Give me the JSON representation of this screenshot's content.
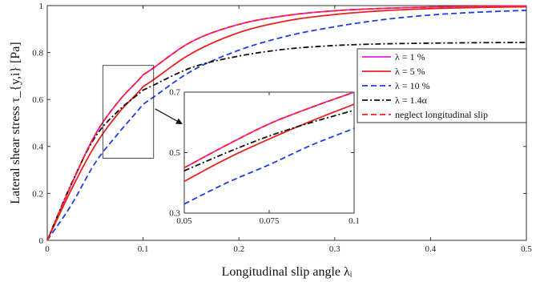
{
  "chart_data": [
    {
      "type": "line",
      "title": "",
      "xlabel": "Longitudinal slip angle λᵢ",
      "ylabel": "Lateral shear stress τ_{y,i} [Pa]",
      "xlim": [
        0,
        0.5
      ],
      "ylim": [
        0,
        1
      ],
      "xticks": [
        "0",
        "0.1",
        "0.2",
        "0.3",
        "0.4",
        "0.5"
      ],
      "yticks": [
        "0",
        "0.2",
        "0.4",
        "0.6",
        "0.8",
        "1"
      ],
      "grid": false,
      "legend_position": "right",
      "x": [
        0,
        0.025,
        0.05,
        0.075,
        0.1,
        0.15,
        0.2,
        0.25,
        0.3,
        0.35,
        0.4,
        0.45,
        0.5
      ],
      "series": [
        {
          "name": "λ = 1 %",
          "color": "#e020e0",
          "dash": "solid",
          "values": [
            0,
            0.236,
            0.45,
            0.595,
            0.705,
            0.845,
            0.92,
            0.958,
            0.978,
            0.988,
            0.994,
            0.997,
            0.998
          ]
        },
        {
          "name": "λ = 5 %",
          "color": "#e8231e",
          "dash": "solid",
          "values": [
            0,
            0.215,
            0.405,
            0.545,
            0.655,
            0.795,
            0.885,
            0.935,
            0.962,
            0.978,
            0.987,
            0.992,
            0.995
          ]
        },
        {
          "name": "λ = 10 %",
          "color": "#1f3fe0",
          "dash": "dashed",
          "values": [
            0,
            0.15,
            0.33,
            0.46,
            0.58,
            0.72,
            0.81,
            0.87,
            0.91,
            0.94,
            0.96,
            0.972,
            0.98
          ]
        },
        {
          "name": "λ = 1.4α",
          "color": "#111111",
          "dash": "dashdot",
          "values": [
            0,
            0.24,
            0.44,
            0.555,
            0.64,
            0.735,
            0.785,
            0.815,
            0.83,
            0.837,
            0.84,
            0.842,
            0.843
          ]
        },
        {
          "name": "neglect longitudinal slip",
          "color": "#ff2020",
          "dash": "dashed",
          "values": [
            0,
            0.236,
            0.45,
            0.595,
            0.705,
            0.845,
            0.92,
            0.958,
            0.978,
            0.988,
            0.994,
            0.997,
            0.998
          ]
        }
      ]
    },
    {
      "type": "line",
      "title": "",
      "xlim": [
        0.05,
        0.1
      ],
      "ylim": [
        0.3,
        0.7
      ],
      "xticks": [
        "0.05",
        "0.075",
        "0.1"
      ],
      "yticks": [
        "0.3",
        "0.5",
        "0.7"
      ],
      "x": [
        0.05,
        0.0625,
        0.075,
        0.0875,
        0.1
      ],
      "series": [
        {
          "color": "#e020e0",
          "dash": "solid",
          "values": [
            0.45,
            0.525,
            0.595,
            0.65,
            0.7
          ]
        },
        {
          "color": "#e8231e",
          "dash": "solid",
          "values": [
            0.405,
            0.48,
            0.545,
            0.605,
            0.66
          ]
        },
        {
          "color": "#1f3fe0",
          "dash": "dashed",
          "values": [
            0.33,
            0.4,
            0.46,
            0.525,
            0.58
          ]
        },
        {
          "color": "#111111",
          "dash": "dashdot",
          "values": [
            0.44,
            0.5,
            0.555,
            0.6,
            0.64
          ]
        },
        {
          "color": "#ff2020",
          "dash": "dashed",
          "values": [
            0.45,
            0.525,
            0.595,
            0.65,
            0.7
          ]
        }
      ]
    }
  ]
}
